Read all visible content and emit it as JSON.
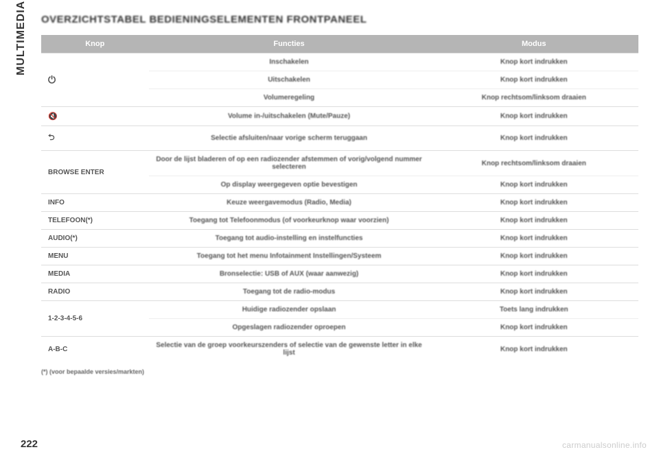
{
  "sidebar": {
    "label": "MULTIMEDIA"
  },
  "page": {
    "title": "OVERZICHTSTABEL BEDIENINGSELEMENTEN FRONTPANEEL",
    "number": "222",
    "watermark": "carmanualsonline.info",
    "footnote": "(*) (voor bepaalde versies/markten)"
  },
  "table": {
    "headers": [
      "Knop",
      "Functies",
      "Modus"
    ],
    "rows": [
      {
        "label": "⏻",
        "label_class": "icon-power",
        "func": "Inschakelen",
        "mode": "Knop kort indrukken",
        "rowspan": 3
      },
      {
        "func": "Uitschakelen",
        "mode": "Knop kort indrukken"
      },
      {
        "func": "Volumeregeling",
        "mode": "Knop rechtsom/linksom draaien"
      },
      {
        "label": "🔇",
        "label_class": "icon-mute",
        "func": "Volume in-/uitschakelen (Mute/Pauze)",
        "mode": "Knop kort indrukken",
        "rowspan": 1
      },
      {
        "label": "⮌",
        "label_class": "icon-back",
        "func": "Selectie afsluiten/naar vorige scherm teruggaan",
        "mode": "Knop kort indrukken",
        "rowspan": 1
      },
      {
        "label": "BROWSE ENTER",
        "func": "Door de lijst bladeren of op een radiozender afstemmen of vorig/volgend nummer selecteren",
        "mode": "Knop rechtsom/linksom draaien",
        "rowspan": 2
      },
      {
        "func": "Op display weergegeven optie bevestigen",
        "mode": "Knop kort indrukken"
      },
      {
        "label": "INFO",
        "func": "Keuze weergavemodus (Radio, Media)",
        "mode": "Knop kort indrukken",
        "rowspan": 1
      },
      {
        "label": "TELEFOON(*)",
        "func": "Toegang tot Telefoonmodus (of voorkeurknop waar voorzien)",
        "mode": "Knop kort indrukken",
        "rowspan": 1
      },
      {
        "label": "AUDIO(*)",
        "func": "Toegang tot audio-instelling en instelfuncties",
        "mode": "Knop kort indrukken",
        "rowspan": 1
      },
      {
        "label": "MENU",
        "func": "Toegang tot het menu Infotainment Instellingen/Systeem",
        "mode": "Knop kort indrukken",
        "rowspan": 1
      },
      {
        "label": "MEDIA",
        "func": "Bronselectie: USB of AUX (waar aanwezig)",
        "mode": "Knop kort indrukken",
        "rowspan": 1
      },
      {
        "label": "RADIO",
        "func": "Toegang tot de radio-modus",
        "mode": "Knop kort indrukken",
        "rowspan": 1
      },
      {
        "label": "1-2-3-4-5-6",
        "func": "Huidige radiozender opslaan",
        "mode": "Toets lang indrukken",
        "rowspan": 2
      },
      {
        "func": "Opgeslagen radiozender oproepen",
        "mode": "Knop kort indrukken"
      },
      {
        "label": "A-B-C",
        "func": "Selectie van de groep voorkeurszenders of selectie van de gewenste letter in elke lijst",
        "mode": "Knop kort indrukken",
        "rowspan": 1
      }
    ]
  }
}
